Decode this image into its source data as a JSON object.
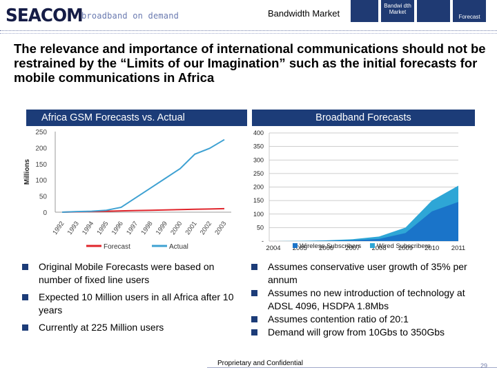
{
  "header": {
    "logo_text": "SEACOM",
    "tagline": "broadband on demand",
    "section": "Bandwidth Market",
    "nav_tabs": [
      "",
      "Bandwi dth Market",
      "",
      "Forecast"
    ]
  },
  "headline": "The relevance and importance of international communications should not be restrained by the “Limits of our Imagination” such as the initial forecasts for mobile communications in Africa",
  "left_panel": {
    "title": "Africa GSM Forecasts vs. Actual",
    "bullets": [
      "Original Mobile Forecasts were based on number of fixed line users",
      "Expected 10 Million users in all Africa after 10 years",
      "Currently at 225 Million users"
    ]
  },
  "right_panel": {
    "title": "Broadband Forecasts",
    "bullets": [
      "Assumes conservative user growth of 35% per annum",
      "Assumes no new introduction of technology at ADSL 4096, HSDPA 1.8Mbs",
      "Assumes contention ratio of 20:1",
      "Demand will grow from 10Gbs to 350Gbs"
    ]
  },
  "footer": {
    "text": "Proprietary and Confidential",
    "page": "29"
  },
  "colors": {
    "navy": "#1c3c78",
    "forecast": "#e0242b",
    "actual": "#3ea1d2",
    "wireless": "#1a74c9",
    "wired": "#2ea6d6"
  },
  "chart_data": [
    {
      "type": "line",
      "title": "",
      "ylabel": "Millions",
      "xlabel": "",
      "ylim": [
        0,
        250
      ],
      "yticks": [
        0,
        50,
        100,
        150,
        200,
        250
      ],
      "x": [
        "1992",
        "1993",
        "1994",
        "1995",
        "1996",
        "1997",
        "1998",
        "1999",
        "2000",
        "2001",
        "2002",
        "2003"
      ],
      "series": [
        {
          "name": "Forecast",
          "color": "#e0242b",
          "values": [
            0,
            1,
            2,
            3,
            4,
            5,
            6,
            7,
            8,
            9,
            10,
            11
          ]
        },
        {
          "name": "Actual",
          "color": "#3ea1d2",
          "values": [
            0,
            2,
            3,
            6,
            15,
            45,
            75,
            105,
            135,
            180,
            198,
            225
          ]
        }
      ],
      "legend": "bottom",
      "grid": false
    },
    {
      "type": "area",
      "title": "",
      "ylim": [
        0,
        400
      ],
      "yticks": [
        "-",
        "50",
        "100",
        "150",
        "200",
        "250",
        "300",
        "350",
        "400"
      ],
      "x": [
        "2004",
        "2005",
        "2006",
        "2007",
        "2008",
        "2009",
        "2010",
        "2011"
      ],
      "series": [
        {
          "name": "Wireless Subscribers",
          "color": "#1a74c9",
          "values": [
            0,
            0,
            1,
            3,
            8,
            30,
            110,
            145
          ]
        },
        {
          "name": "Wired Subscribers",
          "color": "#2ea6d6",
          "values": [
            0,
            1,
            3,
            7,
            17,
            50,
            150,
            205
          ]
        }
      ],
      "legend": "bottom",
      "grid": true
    }
  ]
}
